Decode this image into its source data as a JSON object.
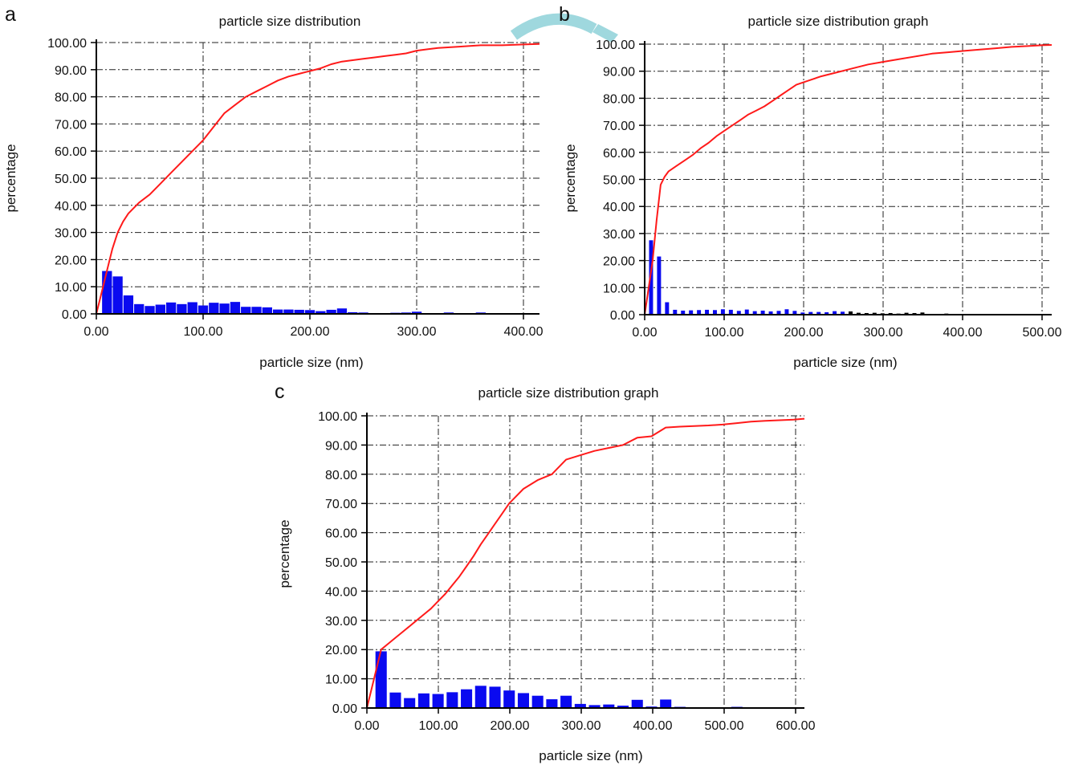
{
  "colors": {
    "bars": "#0a0af0",
    "curve": "#ff1a1a",
    "tail_bars": "#000000",
    "grid": "#222222",
    "watermark": "#9fd8de"
  },
  "chart_data": [
    {
      "panel": "a",
      "type": "bar",
      "title": "particle size distribution",
      "xlabel": "particle size (nm)",
      "ylabel": "percentage",
      "xlim": [
        0,
        415
      ],
      "ylim": [
        0,
        100
      ],
      "xticks": [
        "0.00",
        "100.00",
        "200.00",
        "300.00",
        "400.00"
      ],
      "yticks": [
        "0.00",
        "10.00",
        "20.00",
        "30.00",
        "40.00",
        "50.00",
        "60.00",
        "70.00",
        "80.00",
        "90.00",
        "100.00"
      ],
      "grid": true,
      "series": [
        {
          "type": "bar",
          "bin_width": 10,
          "x": [
            10,
            20,
            30,
            40,
            50,
            60,
            70,
            80,
            90,
            100,
            110,
            120,
            130,
            140,
            150,
            160,
            170,
            180,
            190,
            200,
            210,
            220,
            230,
            240,
            250,
            260,
            270,
            280,
            290,
            300,
            310,
            320,
            330,
            340,
            350,
            360
          ],
          "values": [
            15.8,
            13.8,
            6.8,
            3.6,
            2.9,
            3.4,
            4.2,
            3.6,
            4.3,
            3.1,
            4.1,
            3.8,
            4.4,
            2.6,
            2.6,
            2.4,
            1.6,
            1.6,
            1.5,
            1.4,
            1.0,
            1.5,
            2.0,
            0.6,
            0.5,
            0.3,
            0.3,
            0.4,
            0.5,
            0.8,
            0.2,
            0.2,
            0.5,
            0.2,
            0.2,
            0.5
          ]
        },
        {
          "type": "line",
          "x": [
            0,
            5,
            10,
            15,
            20,
            25,
            30,
            40,
            50,
            60,
            70,
            80,
            90,
            100,
            110,
            120,
            130,
            140,
            150,
            160,
            170,
            180,
            190,
            200,
            210,
            220,
            230,
            240,
            250,
            260,
            270,
            280,
            290,
            300,
            310,
            320,
            340,
            360,
            380,
            400,
            415
          ],
          "values": [
            0,
            8,
            16,
            24,
            30,
            34,
            37,
            41,
            44,
            48,
            52,
            56,
            60,
            64,
            69,
            74,
            77,
            80,
            82,
            84,
            86,
            87.5,
            88.5,
            89.5,
            90.5,
            92,
            93,
            93.5,
            94,
            94.5,
            95,
            95.5,
            96,
            97,
            97.5,
            98,
            98.5,
            99,
            99,
            99.3,
            99.5
          ]
        }
      ]
    },
    {
      "panel": "b",
      "type": "bar",
      "title": "particle size distribution graph",
      "xlabel": "particle size (nm)",
      "ylabel": "percentage",
      "xlim": [
        0,
        510
      ],
      "ylim": [
        0,
        100
      ],
      "xticks": [
        "0.00",
        "100.00",
        "200.00",
        "300.00",
        "400.00",
        "500.00"
      ],
      "yticks": [
        "0.00",
        "10.00",
        "20.00",
        "30.00",
        "40.00",
        "50.00",
        "60.00",
        "70.00",
        "80.00",
        "90.00",
        "100.00"
      ],
      "grid": true,
      "series": [
        {
          "type": "bar",
          "bin_width": 6,
          "x": [
            8,
            18,
            28,
            38,
            48,
            58,
            68,
            78,
            88,
            98,
            108,
            118,
            128,
            138,
            148,
            158,
            168,
            178,
            188,
            198,
            208,
            218,
            228,
            238,
            248,
            258,
            268,
            278,
            288,
            298,
            308,
            318,
            328,
            338,
            348,
            378
          ],
          "values": [
            27.5,
            21.5,
            4.6,
            1.8,
            1.5,
            1.6,
            1.7,
            1.8,
            1.7,
            2.0,
            1.8,
            1.4,
            1.9,
            1.3,
            1.5,
            1.2,
            1.4,
            2.0,
            1.4,
            0.8,
            1.0,
            1.0,
            0.9,
            1.3,
            1.1,
            1.2,
            0.7,
            0.6,
            0.7,
            0.5,
            0.6,
            0.4,
            0.7,
            0.6,
            0.8,
            0.4
          ]
        },
        {
          "type": "line",
          "x": [
            0,
            5,
            10,
            15,
            20,
            25,
            30,
            40,
            50,
            60,
            70,
            80,
            90,
            100,
            110,
            120,
            130,
            140,
            150,
            160,
            170,
            180,
            190,
            200,
            210,
            220,
            240,
            260,
            280,
            300,
            320,
            340,
            360,
            380,
            400,
            420,
            440,
            460,
            480,
            500,
            510
          ],
          "values": [
            0,
            10,
            20,
            35,
            48,
            51,
            53,
            55,
            57,
            59,
            61.5,
            63.5,
            66,
            68,
            70,
            72,
            74,
            75.5,
            77,
            79,
            81,
            83,
            85,
            86,
            87,
            88,
            89.5,
            91,
            92.5,
            93.5,
            94.5,
            95.5,
            96.5,
            97,
            97.5,
            98,
            98.5,
            99,
            99.3,
            99.6,
            99.7
          ]
        }
      ]
    },
    {
      "panel": "c",
      "type": "bar",
      "title": "particle size distribution graph",
      "xlabel": "particle size (nm)",
      "ylabel": "percentage",
      "xlim": [
        0,
        615
      ],
      "ylim": [
        0,
        100
      ],
      "xticks": [
        "0.00",
        "100.00",
        "200.00",
        "300.00",
        "400.00",
        "500.00",
        "600.00"
      ],
      "yticks": [
        "0.00",
        "10.00",
        "20.00",
        "30.00",
        "40.00",
        "50.00",
        "60.00",
        "70.00",
        "80.00",
        "90.00",
        "100.00"
      ],
      "grid": true,
      "series": [
        {
          "type": "bar",
          "bin_width": 17,
          "x": [
            20,
            40,
            60,
            80,
            100,
            120,
            140,
            160,
            180,
            200,
            220,
            240,
            260,
            280,
            300,
            320,
            340,
            360,
            380,
            400,
            420,
            440,
            520
          ],
          "values": [
            19.4,
            5.3,
            3.4,
            5.0,
            4.8,
            5.4,
            6.4,
            7.6,
            7.3,
            6.0,
            5.1,
            4.2,
            3.0,
            4.2,
            1.4,
            1.0,
            1.2,
            0.8,
            2.8,
            0.5,
            2.9,
            0.4,
            0.4
          ]
        },
        {
          "type": "line",
          "x": [
            0,
            10,
            20,
            30,
            40,
            50,
            60,
            70,
            80,
            90,
            100,
            110,
            120,
            130,
            140,
            150,
            160,
            170,
            180,
            190,
            200,
            210,
            220,
            240,
            260,
            280,
            300,
            320,
            340,
            360,
            380,
            400,
            420,
            440,
            460,
            480,
            500,
            520,
            540,
            560,
            580,
            600,
            615
          ],
          "values": [
            0,
            10,
            20,
            22,
            24,
            26,
            28,
            30,
            32,
            34,
            36.5,
            39,
            42,
            45,
            48.5,
            52,
            56,
            59.5,
            63,
            66.5,
            70,
            72.5,
            75,
            78,
            80,
            85,
            86.5,
            88,
            89,
            90,
            92.5,
            93,
            96,
            96.3,
            96.5,
            96.7,
            97,
            97.5,
            98,
            98.3,
            98.5,
            98.7,
            99
          ]
        }
      ]
    }
  ]
}
